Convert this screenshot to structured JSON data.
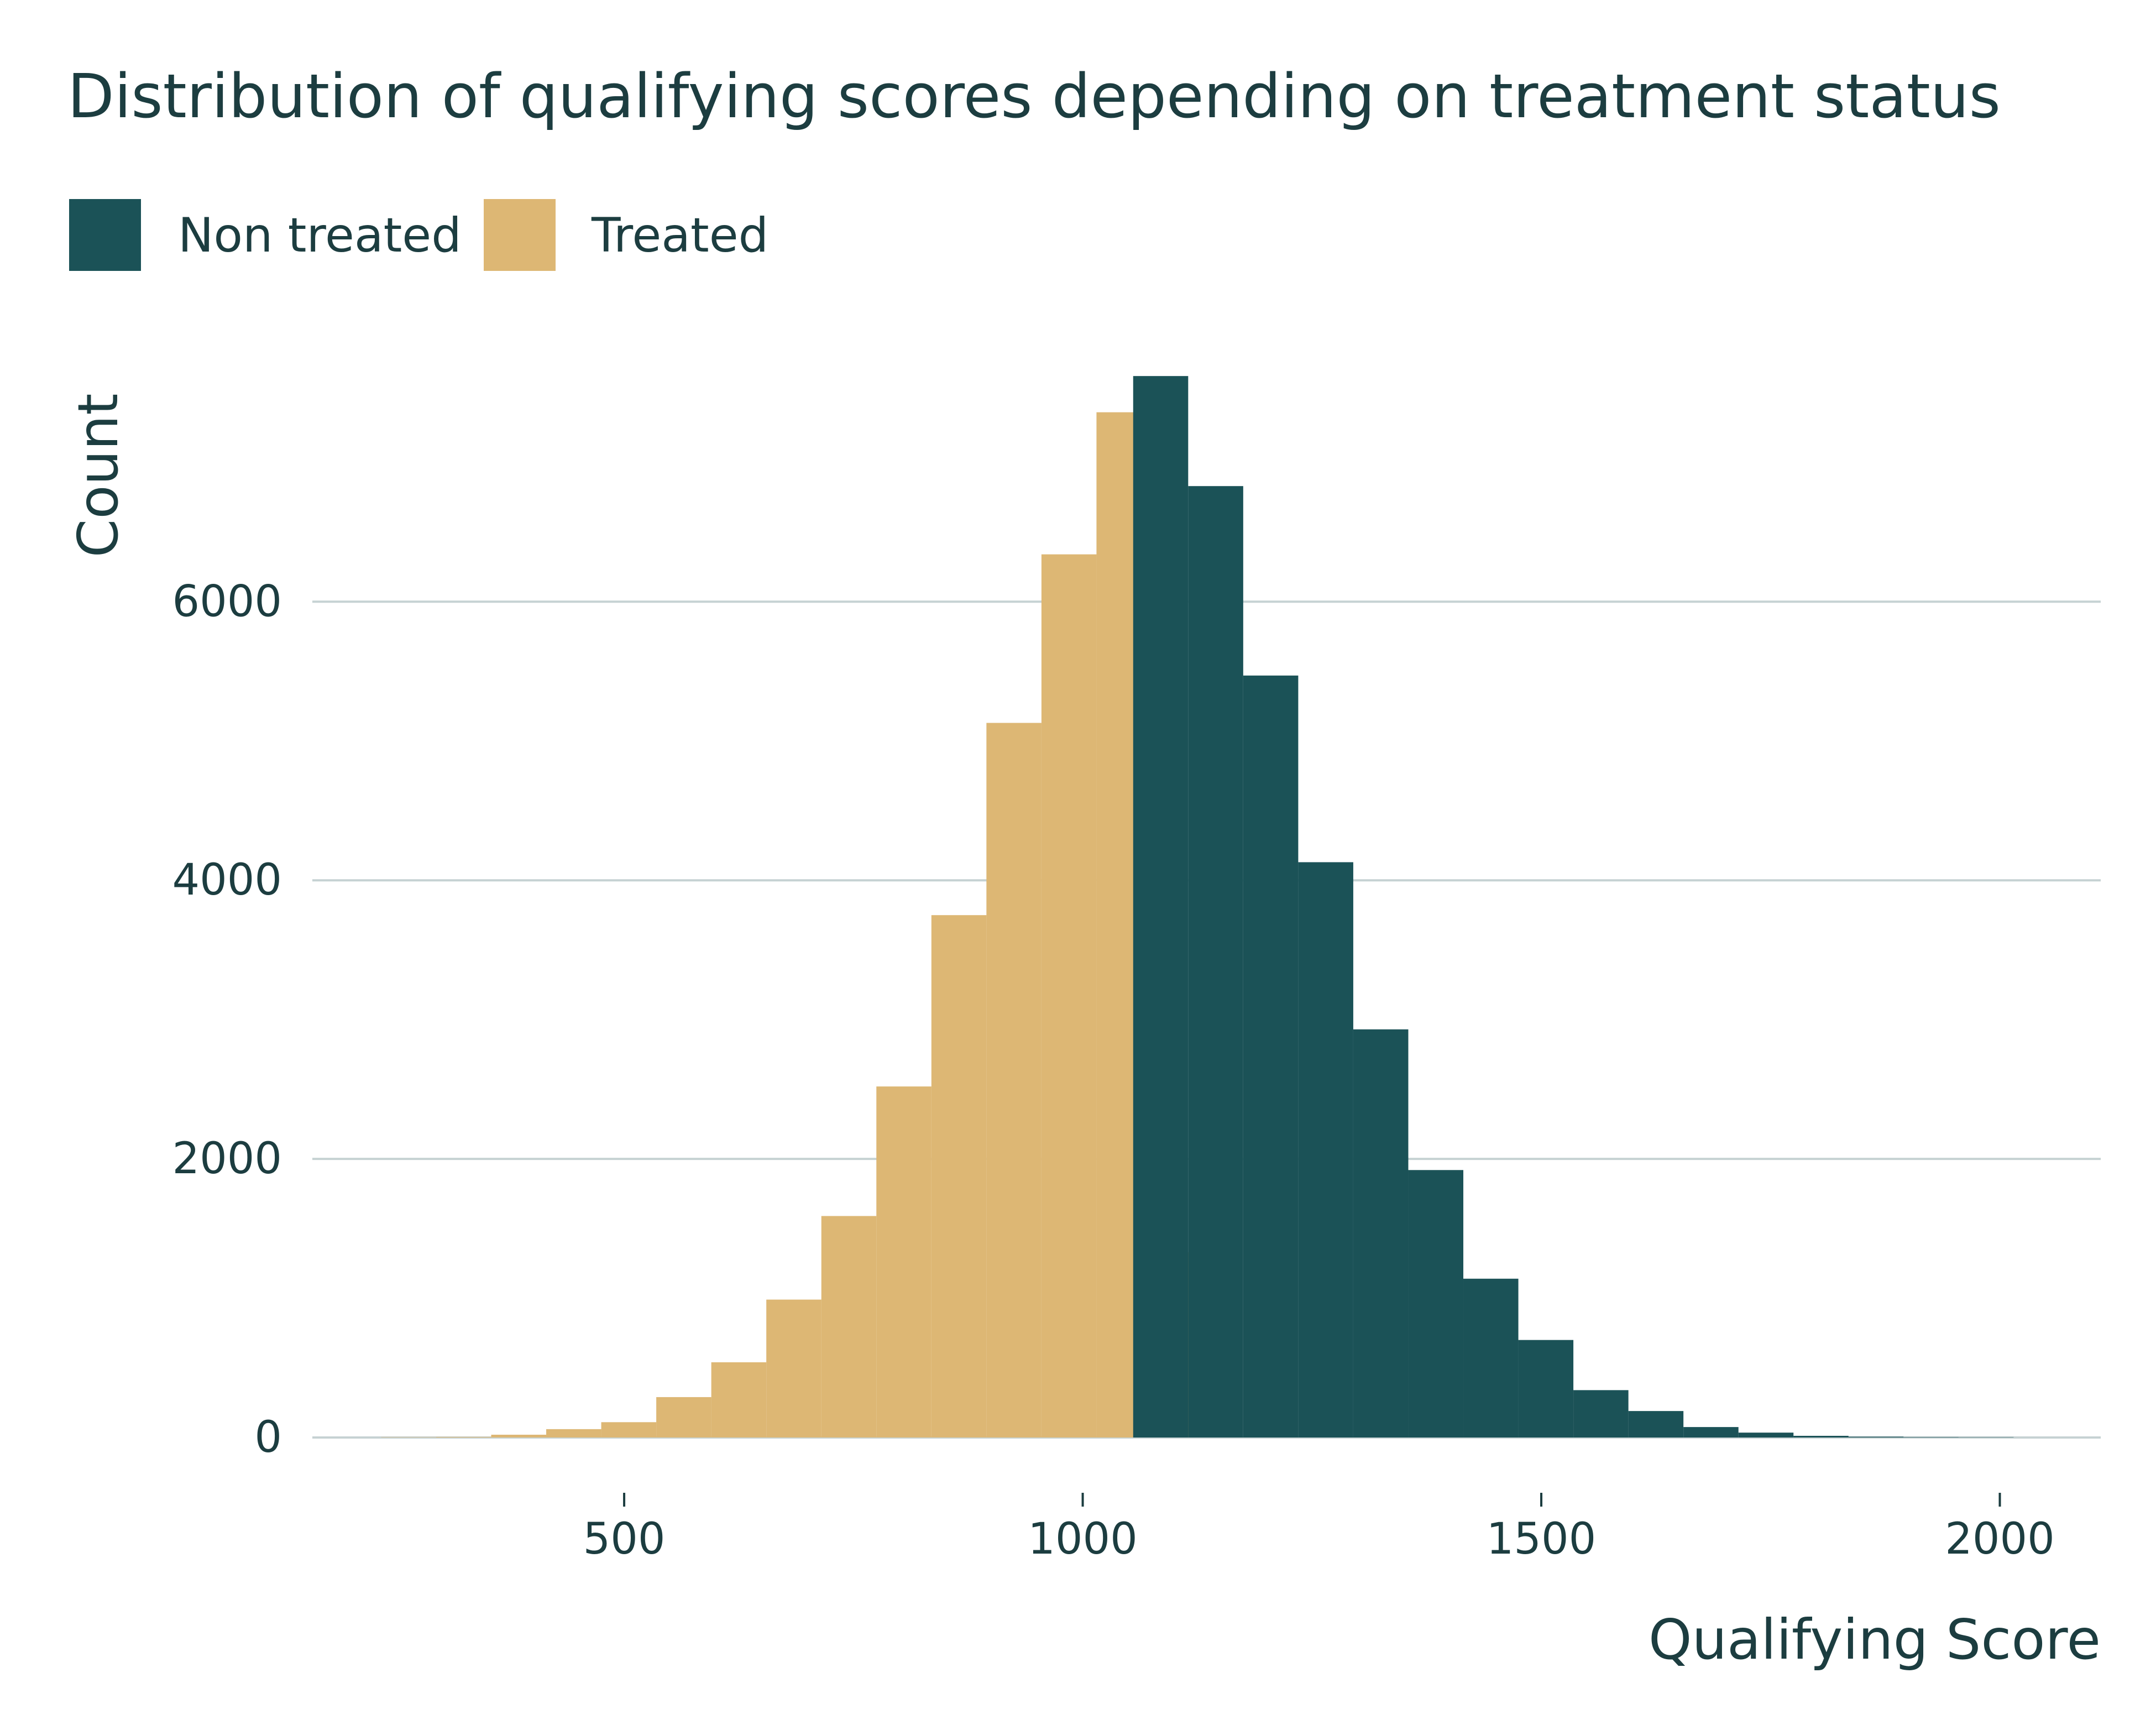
{
  "chart_data": {
    "type": "bar",
    "title": "Distribution of qualifying scores depending on treatment status",
    "xlabel": "Qualifying Score",
    "ylabel": "Count",
    "xlim": [
      160,
      2110
    ],
    "ylim": [
      0,
      7700
    ],
    "xticks": [
      "500",
      "1000",
      "1500",
      "2000"
    ],
    "yticks": [
      "0",
      "2000",
      "4000",
      "6000"
    ],
    "bin_width": 60,
    "legend_position": "top-left",
    "grid": "horizontal",
    "series": [
      {
        "name": "Non treated",
        "color": "#1b5257",
        "bins": [
          {
            "x0": 1055,
            "x1": 1115,
            "count": 7620
          },
          {
            "x0": 1115,
            "x1": 1175,
            "count": 6830
          },
          {
            "x0": 1175,
            "x1": 1235,
            "count": 5470
          },
          {
            "x0": 1235,
            "x1": 1295,
            "count": 4130
          },
          {
            "x0": 1295,
            "x1": 1355,
            "count": 2930
          },
          {
            "x0": 1355,
            "x1": 1415,
            "count": 1920
          },
          {
            "x0": 1415,
            "x1": 1475,
            "count": 1140
          },
          {
            "x0": 1475,
            "x1": 1535,
            "count": 700
          },
          {
            "x0": 1535,
            "x1": 1595,
            "count": 340
          },
          {
            "x0": 1595,
            "x1": 1655,
            "count": 190
          },
          {
            "x0": 1655,
            "x1": 1715,
            "count": 75
          },
          {
            "x0": 1715,
            "x1": 1775,
            "count": 35
          },
          {
            "x0": 1775,
            "x1": 1835,
            "count": 12
          },
          {
            "x0": 1835,
            "x1": 1895,
            "count": 6
          },
          {
            "x0": 1895,
            "x1": 1955,
            "count": 3
          },
          {
            "x0": 1955,
            "x1": 2015,
            "count": 1
          }
        ]
      },
      {
        "name": "Treated",
        "color": "#ddb774",
        "bins": [
          {
            "x0": 235,
            "x1": 295,
            "count": 1
          },
          {
            "x0": 295,
            "x1": 355,
            "count": 4
          },
          {
            "x0": 355,
            "x1": 415,
            "count": 20
          },
          {
            "x0": 415,
            "x1": 475,
            "count": 60
          },
          {
            "x0": 475,
            "x1": 535,
            "count": 110
          },
          {
            "x0": 535,
            "x1": 595,
            "count": 290
          },
          {
            "x0": 595,
            "x1": 655,
            "count": 540
          },
          {
            "x0": 655,
            "x1": 715,
            "count": 990
          },
          {
            "x0": 715,
            "x1": 775,
            "count": 1590
          },
          {
            "x0": 775,
            "x1": 835,
            "count": 2520
          },
          {
            "x0": 835,
            "x1": 895,
            "count": 3750
          },
          {
            "x0": 895,
            "x1": 955,
            "count": 5130
          },
          {
            "x0": 955,
            "x1": 1015,
            "count": 6340
          },
          {
            "x0": 1015,
            "x1": 1075,
            "count": 7360
          },
          {
            "x0": 1075,
            "x1": 1135,
            "count": 1330
          }
        ]
      }
    ]
  }
}
